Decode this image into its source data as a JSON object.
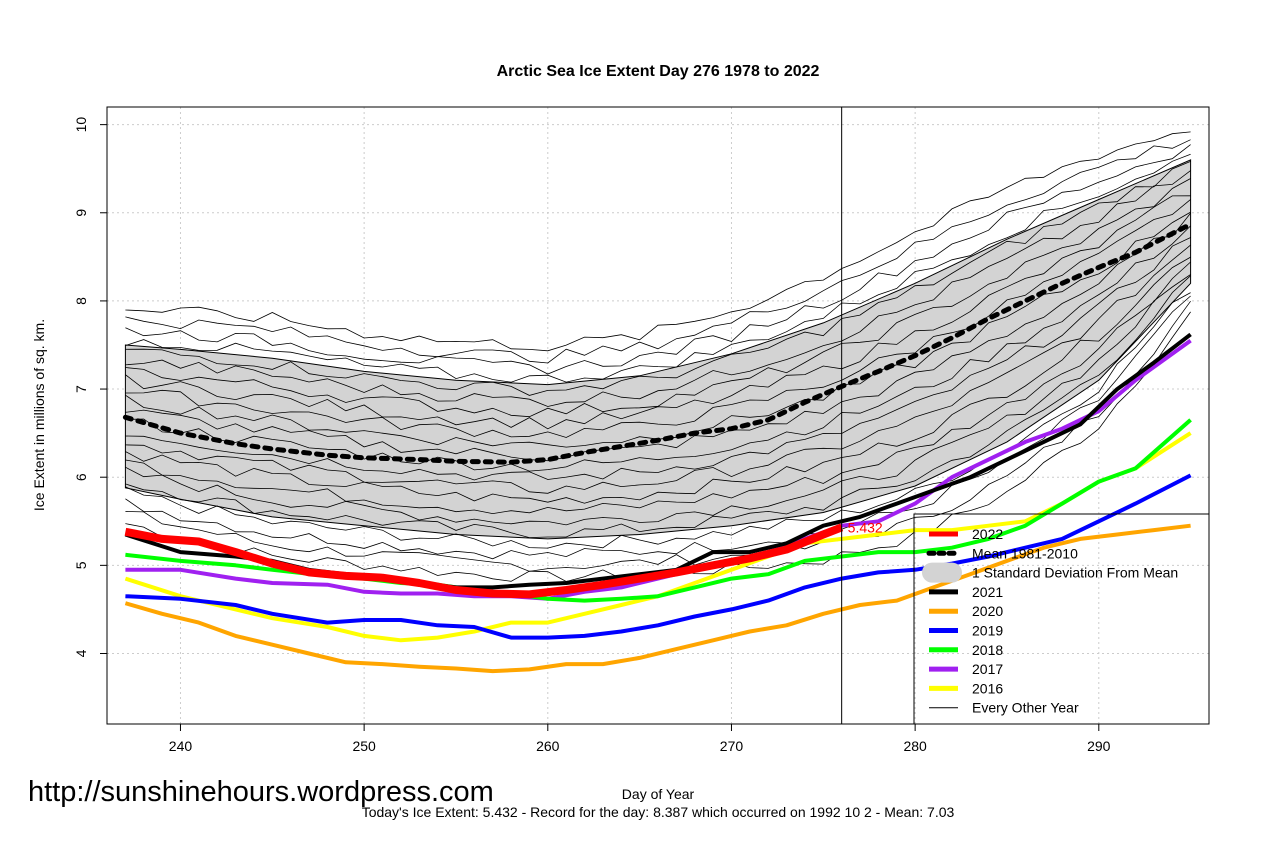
{
  "chart_data": {
    "type": "line",
    "title": "Arctic Sea Ice Extent Day 276 1978 to 2022",
    "xlabel": "Day of Year",
    "ylabel": "Ice Extent in millions of sq. km.",
    "xlim": [
      236,
      296
    ],
    "ylim": [
      3.2,
      10.2
    ],
    "x_ticks": [
      240,
      250,
      260,
      270,
      280,
      290
    ],
    "y_ticks": [
      4,
      5,
      6,
      7,
      8,
      9,
      10
    ],
    "grid": true,
    "current_day": 276,
    "current_value": 5.432,
    "current_value_label": "5.432",
    "legend_position": "bottom-right",
    "legend": [
      {
        "label": "2022",
        "color": "#ff0000",
        "style": "thick"
      },
      {
        "label": "Mean 1981-2010",
        "color": "#000000",
        "style": "dotted"
      },
      {
        "label": "1 Standard Deviation From Mean",
        "color": "#d3d3d3",
        "style": "band"
      },
      {
        "label": "2021",
        "color": "#000000",
        "style": "thick"
      },
      {
        "label": "2020",
        "color": "#ffa500",
        "style": "thick"
      },
      {
        "label": "2019",
        "color": "#0000ff",
        "style": "thick"
      },
      {
        "label": "2018",
        "color": "#00ff00",
        "style": "thick"
      },
      {
        "label": "2017",
        "color": "#a020f0",
        "style": "thick"
      },
      {
        "label": "2016",
        "color": "#ffff00",
        "style": "thick"
      },
      {
        "label": "Every Other Year",
        "color": "#000000",
        "style": "thin"
      }
    ],
    "std_band": {
      "x": [
        237,
        240,
        245,
        250,
        255,
        260,
        265,
        270,
        275,
        280,
        285,
        290,
        295
      ],
      "upper": [
        7.5,
        7.45,
        7.35,
        7.2,
        7.1,
        7.05,
        7.15,
        7.4,
        7.75,
        8.2,
        8.7,
        9.15,
        9.6
      ],
      "lower": [
        5.88,
        5.75,
        5.55,
        5.45,
        5.35,
        5.3,
        5.35,
        5.45,
        5.6,
        5.9,
        6.4,
        7.1,
        8.2
      ]
    },
    "series": [
      {
        "name": "Mean 1981-2010",
        "color": "#000000",
        "style": "dotted",
        "x": [
          237,
          240,
          243,
          245,
          248,
          250,
          253,
          255,
          258,
          260,
          262,
          264,
          266,
          268,
          270,
          272,
          274,
          276,
          278,
          280,
          282,
          284,
          286,
          288,
          290,
          292,
          295
        ],
        "y": [
          6.68,
          6.5,
          6.38,
          6.32,
          6.25,
          6.22,
          6.2,
          6.18,
          6.17,
          6.2,
          6.28,
          6.35,
          6.42,
          6.5,
          6.55,
          6.65,
          6.85,
          7.03,
          7.2,
          7.38,
          7.58,
          7.8,
          8.0,
          8.2,
          8.38,
          8.55,
          8.87
        ]
      },
      {
        "name": "2016",
        "color": "#ffff00",
        "style": "thick",
        "x": [
          237,
          240,
          243,
          245,
          248,
          250,
          252,
          254,
          256,
          258,
          260,
          262,
          264,
          266,
          268,
          270,
          272,
          274,
          276,
          278,
          280,
          282,
          284,
          286,
          288,
          290,
          292,
          295
        ],
        "y": [
          4.85,
          4.65,
          4.5,
          4.4,
          4.3,
          4.2,
          4.15,
          4.18,
          4.25,
          4.35,
          4.35,
          4.45,
          4.55,
          4.65,
          4.8,
          4.95,
          5.1,
          5.25,
          5.3,
          5.35,
          5.4,
          5.4,
          5.45,
          5.5,
          5.7,
          5.95,
          6.1,
          6.5
        ]
      },
      {
        "name": "2017",
        "color": "#a020f0",
        "style": "thick",
        "x": [
          237,
          240,
          243,
          245,
          248,
          250,
          252,
          254,
          256,
          258,
          260,
          262,
          264,
          266,
          268,
          270,
          272,
          274,
          276,
          278,
          280,
          282,
          284,
          286,
          288,
          290,
          292,
          295
        ],
        "y": [
          4.95,
          4.95,
          4.85,
          4.8,
          4.78,
          4.7,
          4.68,
          4.68,
          4.65,
          4.65,
          4.62,
          4.7,
          4.75,
          4.85,
          4.95,
          5.05,
          5.15,
          5.3,
          5.45,
          5.5,
          5.7,
          6.0,
          6.2,
          6.4,
          6.55,
          6.75,
          7.1,
          7.55
        ]
      },
      {
        "name": "2018",
        "color": "#00ff00",
        "style": "thick",
        "x": [
          237,
          240,
          243,
          245,
          248,
          250,
          252,
          254,
          256,
          258,
          260,
          262,
          264,
          266,
          268,
          270,
          272,
          274,
          276,
          278,
          280,
          282,
          284,
          286,
          288,
          290,
          292,
          295
        ],
        "y": [
          5.12,
          5.05,
          5.0,
          4.95,
          4.88,
          4.85,
          4.8,
          4.78,
          4.72,
          4.68,
          4.62,
          4.6,
          4.62,
          4.65,
          4.75,
          4.85,
          4.9,
          5.05,
          5.1,
          5.15,
          5.15,
          5.2,
          5.3,
          5.45,
          5.7,
          5.95,
          6.1,
          6.65
        ]
      },
      {
        "name": "2019",
        "color": "#0000ff",
        "style": "thick",
        "x": [
          237,
          240,
          243,
          245,
          248,
          250,
          252,
          254,
          256,
          258,
          260,
          262,
          264,
          266,
          268,
          270,
          272,
          274,
          276,
          278,
          280,
          282,
          284,
          286,
          288,
          290,
          292,
          295
        ],
        "y": [
          4.65,
          4.62,
          4.55,
          4.45,
          4.35,
          4.38,
          4.38,
          4.32,
          4.3,
          4.18,
          4.18,
          4.2,
          4.25,
          4.32,
          4.42,
          4.5,
          4.6,
          4.75,
          4.85,
          4.92,
          4.95,
          5.02,
          5.1,
          5.2,
          5.3,
          5.5,
          5.7,
          6.02
        ]
      },
      {
        "name": "2020",
        "color": "#ffa500",
        "style": "thick",
        "x": [
          237,
          239,
          241,
          243,
          245,
          247,
          249,
          251,
          253,
          255,
          257,
          259,
          261,
          263,
          265,
          267,
          269,
          271,
          273,
          275,
          277,
          279,
          281,
          283,
          285,
          287,
          289,
          291,
          293,
          295
        ],
        "y": [
          4.57,
          4.45,
          4.35,
          4.2,
          4.1,
          4.0,
          3.9,
          3.88,
          3.85,
          3.83,
          3.8,
          3.82,
          3.88,
          3.88,
          3.95,
          4.05,
          4.15,
          4.25,
          4.32,
          4.45,
          4.55,
          4.6,
          4.75,
          4.9,
          5.05,
          5.2,
          5.3,
          5.35,
          5.4,
          5.45
        ]
      },
      {
        "name": "2021",
        "color": "#000000",
        "style": "thick",
        "x": [
          237,
          240,
          243,
          245,
          247,
          249,
          251,
          253,
          255,
          257,
          259,
          261,
          263,
          265,
          267,
          269,
          271,
          273,
          275,
          277,
          279,
          281,
          283,
          285,
          287,
          289,
          291,
          293,
          295
        ],
        "y": [
          5.35,
          5.15,
          5.1,
          5.05,
          4.95,
          4.9,
          4.85,
          4.8,
          4.75,
          4.75,
          4.78,
          4.8,
          4.85,
          4.9,
          4.95,
          5.15,
          5.15,
          5.25,
          5.45,
          5.55,
          5.7,
          5.85,
          6.0,
          6.2,
          6.4,
          6.6,
          7.0,
          7.3,
          7.62
        ]
      },
      {
        "name": "2022",
        "color": "#ff0000",
        "style": "thick",
        "x": [
          237,
          239,
          241,
          243,
          245,
          247,
          249,
          251,
          253,
          255,
          257,
          259,
          261,
          263,
          265,
          267,
          269,
          271,
          273,
          275,
          276
        ],
        "y": [
          5.38,
          5.3,
          5.27,
          5.15,
          5.02,
          4.92,
          4.88,
          4.86,
          4.8,
          4.72,
          4.68,
          4.67,
          4.72,
          4.78,
          4.85,
          4.92,
          5.0,
          5.08,
          5.18,
          5.35,
          5.43
        ]
      }
    ],
    "background_years_count": 22,
    "vertical_marker_day": 276
  },
  "watermark": "http://sunshinehours.wordpress.com",
  "footer": "Today's Ice Extent: 5.432  - Record for the day: 8.387 which occurred on 1992 10 2  - Mean: 7.03"
}
